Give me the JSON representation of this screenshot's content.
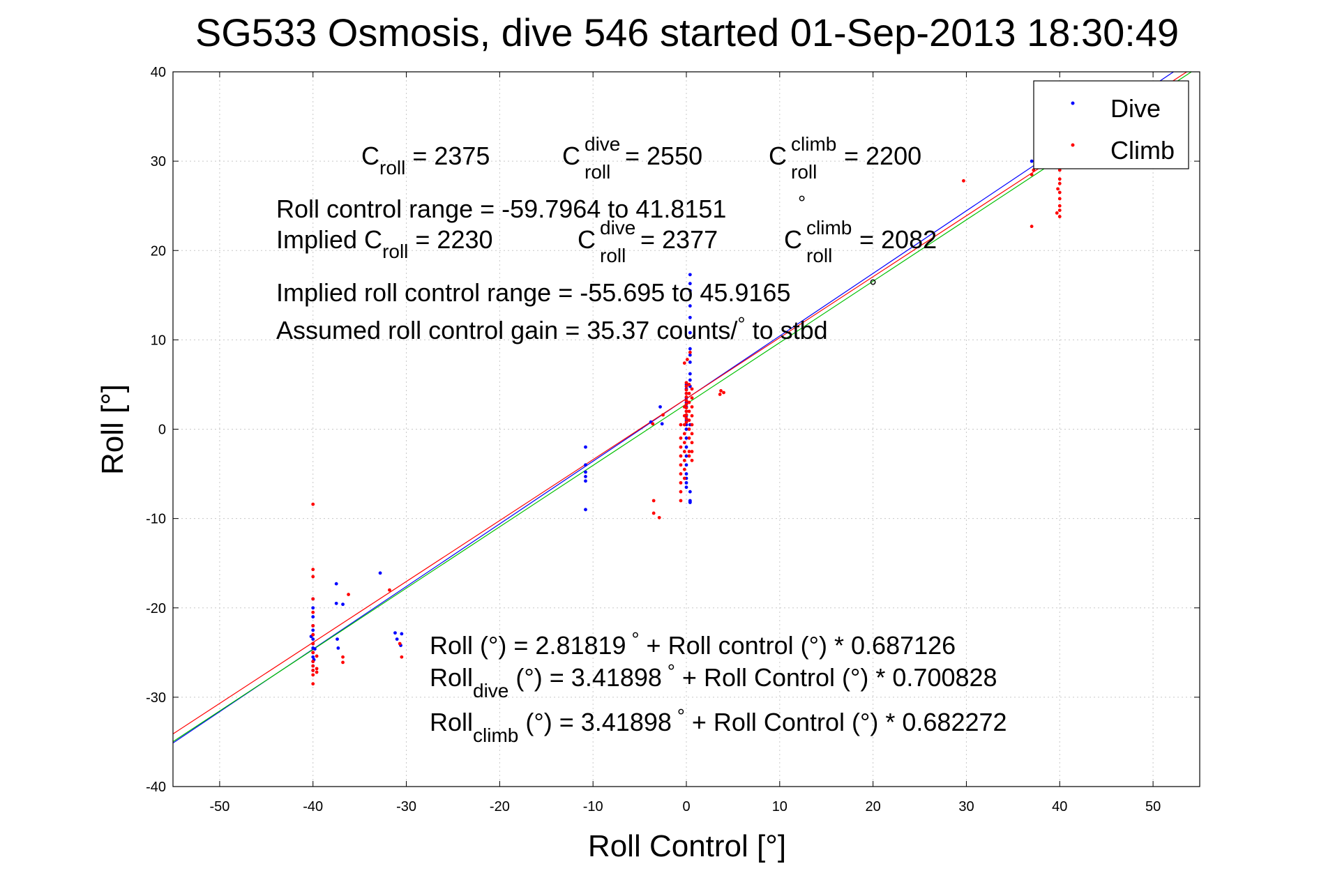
{
  "chart_data": {
    "type": "scatter",
    "title": "SG533 Osmosis, dive 546 started 01-Sep-2013 18:30:49",
    "xlabel": "Roll Control [°]",
    "ylabel": "Roll [°]",
    "xlim": [
      -55,
      55
    ],
    "ylim": [
      -40,
      40
    ],
    "xticks": [
      -50,
      -40,
      -30,
      -20,
      -10,
      0,
      10,
      20,
      30,
      40,
      50
    ],
    "yticks": [
      -40,
      -30,
      -20,
      -10,
      0,
      10,
      20,
      30,
      40
    ],
    "grid": true,
    "legend": {
      "placement": "top-right",
      "entries": [
        {
          "label": "Dive",
          "color": "#0000ff"
        },
        {
          "label": "Climb",
          "color": "#ff0000"
        }
      ]
    },
    "series": [
      {
        "name": "Dive",
        "color": "#0000ff",
        "points": [
          [
            -40,
            -19
          ],
          [
            -40,
            -20
          ],
          [
            -40,
            -21
          ],
          [
            -40,
            -22
          ],
          [
            -40,
            -22.5
          ],
          [
            -40,
            -23
          ],
          [
            -40,
            -23.5
          ],
          [
            -40,
            -24
          ],
          [
            -40,
            -24.5
          ],
          [
            -40,
            -25
          ],
          [
            -40,
            -25.5
          ],
          [
            -40,
            -26
          ],
          [
            -40,
            -26.5
          ],
          [
            -40,
            -27
          ],
          [
            -40.2,
            -23.2
          ],
          [
            -39.8,
            -24.6
          ],
          [
            -39.9,
            -25.8
          ],
          [
            -37.5,
            -17.3
          ],
          [
            -37.5,
            -19.5
          ],
          [
            -37.4,
            -23.5
          ],
          [
            -37.3,
            -24.5
          ],
          [
            -36.8,
            -19.6
          ],
          [
            -32.8,
            -16.1
          ],
          [
            -31.2,
            -22.8
          ],
          [
            -31.0,
            -23.5
          ],
          [
            -30.5,
            -22.9
          ],
          [
            -30.6,
            -24.2
          ],
          [
            -10.8,
            -2.0
          ],
          [
            -10.8,
            -4.0
          ],
          [
            -10.8,
            -4.8
          ],
          [
            -10.8,
            -5.3
          ],
          [
            -10.8,
            -5.8
          ],
          [
            -10.8,
            -9.0
          ],
          [
            -3.8,
            0.8
          ],
          [
            -2.8,
            2.5
          ],
          [
            -2.6,
            0.6
          ],
          [
            0,
            5.0
          ],
          [
            0,
            4.5
          ],
          [
            0,
            4.0
          ],
          [
            0,
            3.5
          ],
          [
            0,
            3.0
          ],
          [
            0,
            2.5
          ],
          [
            0,
            2.0
          ],
          [
            0,
            1.5
          ],
          [
            0,
            1.0
          ],
          [
            0,
            0.5
          ],
          [
            0,
            0
          ],
          [
            0,
            -1.0
          ],
          [
            0,
            -2.0
          ],
          [
            0,
            -3.0
          ],
          [
            0,
            -4.0
          ],
          [
            0,
            -5.0
          ],
          [
            0,
            -5.5
          ],
          [
            0,
            -6.0
          ],
          [
            0,
            -6.5
          ],
          [
            0.4,
            17.3
          ],
          [
            0.4,
            16.3
          ],
          [
            0.4,
            15.5
          ],
          [
            0.4,
            13.8
          ],
          [
            0.4,
            12.5
          ],
          [
            0.4,
            10.8
          ],
          [
            0.4,
            9.0
          ],
          [
            0.4,
            8.3
          ],
          [
            0.4,
            7.5
          ],
          [
            0.4,
            6.2
          ],
          [
            0.4,
            5.5
          ],
          [
            0.4,
            4.8
          ],
          [
            0.4,
            0.5
          ],
          [
            0.4,
            -7.0
          ],
          [
            0.4,
            -8.0
          ],
          [
            0.4,
            -8.1
          ],
          [
            0.4,
            -8.2
          ],
          [
            37.0,
            30.0
          ],
          [
            40.0,
            31.0
          ],
          [
            40.0,
            30.5
          ],
          [
            39.8,
            29.5
          ]
        ]
      },
      {
        "name": "Climb",
        "color": "#ff0000",
        "points": [
          [
            -40,
            -8.4
          ],
          [
            -40,
            -15.7
          ],
          [
            -40,
            -16.5
          ],
          [
            -40,
            -19.0
          ],
          [
            -40,
            -20.5
          ],
          [
            -40,
            -22.0
          ],
          [
            -40,
            -23.0
          ],
          [
            -40,
            -24.0
          ],
          [
            -40,
            -25.0
          ],
          [
            -40,
            -26.0
          ],
          [
            -40,
            -26.5
          ],
          [
            -40,
            -27.0
          ],
          [
            -40,
            -27.5
          ],
          [
            -40,
            -28.5
          ],
          [
            -39.6,
            -25.4
          ],
          [
            -39.6,
            -26.8
          ],
          [
            -39.6,
            -27.2
          ],
          [
            -36.8,
            -25.5
          ],
          [
            -36.8,
            -26.1
          ],
          [
            -36.2,
            -18.5
          ],
          [
            -31.8,
            -18.0
          ],
          [
            -30.7,
            -24.0
          ],
          [
            -30.5,
            -25.5
          ],
          [
            -3.5,
            -8.0
          ],
          [
            -3.5,
            -9.4
          ],
          [
            -2.9,
            -9.9
          ],
          [
            -3.6,
            0.6
          ],
          [
            -2.5,
            1.6
          ],
          [
            -0.6,
            0.5
          ],
          [
            -0.6,
            -1.0
          ],
          [
            -0.6,
            -2.0
          ],
          [
            -0.6,
            -3.0
          ],
          [
            -0.6,
            -4.0
          ],
          [
            -0.6,
            -5.0
          ],
          [
            -0.6,
            -6.0
          ],
          [
            -0.6,
            -7.0
          ],
          [
            -0.6,
            -8.0
          ],
          [
            -0.2,
            2.5
          ],
          [
            -0.2,
            1.5
          ],
          [
            -0.2,
            0.5
          ],
          [
            -0.2,
            -0.5
          ],
          [
            -0.2,
            -1.5
          ],
          [
            -0.2,
            -2.5
          ],
          [
            -0.2,
            -3.5
          ],
          [
            -0.2,
            -4.5
          ],
          [
            -0.2,
            -5.5
          ],
          [
            0,
            5.2
          ],
          [
            0,
            4.8
          ],
          [
            0,
            4.4
          ],
          [
            0,
            4.0
          ],
          [
            0,
            3.6
          ],
          [
            0,
            3.2
          ],
          [
            0,
            2.8
          ],
          [
            0,
            2.4
          ],
          [
            0,
            2.0
          ],
          [
            0,
            1.6
          ],
          [
            0,
            1.2
          ],
          [
            0,
            0.8
          ],
          [
            0.3,
            5.0
          ],
          [
            0.3,
            4.0
          ],
          [
            0.3,
            3.0
          ],
          [
            0.3,
            2.0
          ],
          [
            0.3,
            1.0
          ],
          [
            0.3,
            0
          ],
          [
            0.3,
            -1.0
          ],
          [
            0.3,
            -2.5
          ],
          [
            0.3,
            -3.0
          ],
          [
            0.6,
            4.5
          ],
          [
            0.6,
            3.5
          ],
          [
            0.6,
            2.5
          ],
          [
            0.6,
            1.5
          ],
          [
            0.6,
            0.5
          ],
          [
            0.6,
            -0.5
          ],
          [
            0.6,
            -1.5
          ],
          [
            0.6,
            -2.5
          ],
          [
            0.6,
            -3.5
          ],
          [
            -0.2,
            7.4
          ],
          [
            0.1,
            7.8
          ],
          [
            0.4,
            8.6
          ],
          [
            3.6,
            3.9
          ],
          [
            3.7,
            4.3
          ],
          [
            4.0,
            4.1
          ],
          [
            29.7,
            27.8
          ],
          [
            37.0,
            22.7
          ],
          [
            37.0,
            28.5
          ],
          [
            37.2,
            29.0
          ],
          [
            40.0,
            23.8
          ],
          [
            40.0,
            24.5
          ],
          [
            40.0,
            25.0
          ],
          [
            40.0,
            25.8
          ],
          [
            40.0,
            26.5
          ],
          [
            40.0,
            27.5
          ],
          [
            40.0,
            28.0
          ],
          [
            40.0,
            29.0
          ],
          [
            40.0,
            30.0
          ],
          [
            39.7,
            24.2
          ],
          [
            39.8,
            26.9
          ]
        ]
      }
    ],
    "fit_lines": [
      {
        "color": "#0000ff",
        "intercept": 3.41898,
        "slope": 0.700828
      },
      {
        "color": "#00c000",
        "intercept": 2.81819,
        "slope": 0.687126
      },
      {
        "color": "#ff0000",
        "intercept": 3.41898,
        "slope": 0.682272
      }
    ],
    "annotations": {
      "c_roll_line": {
        "c1": "C",
        "c1_sub": "roll",
        "c1_val": " = 2375",
        "c2": "C",
        "c2_sup": "dive",
        "c2_sub": "roll",
        "c2_val": " = 2550",
        "c3": "C",
        "c3_sup": "climb",
        "c3_sub": "roll",
        "c3_val": " = 2200"
      },
      "roll_control_range": "Roll control range = -59.7964 to 41.8151",
      "implied_line": {
        "prefix": "Implied C",
        "c1_sub": "roll",
        "c1_val": " = 2230",
        "c2": "C",
        "c2_sup": "dive",
        "c2_sub": "roll",
        "c2_val": " = 2377",
        "c3": "C",
        "c3_sup": "climb",
        "c3_sub": "roll",
        "c3_val": " = 2082"
      },
      "implied_range": "Implied roll control range = -55.695 to 45.9165",
      "gain_pre": "Assumed roll control gain = 35.37 counts/",
      "gain_post": " to stbd",
      "degree_symbol": "°",
      "fit_all": "Roll (°) = 2.81819",
      "fit_all_rest": " + Roll control (°) * 0.687126",
      "fit_dive_pre": "Roll",
      "fit_dive_sub": "dive",
      "fit_dive_rest": " (°) = 3.41898",
      "fit_dive_rest2": " + Roll Control (°) * 0.700828",
      "fit_climb_pre": "Roll",
      "fit_climb_sub": "climb",
      "fit_climb_rest": " (°) = 3.41898",
      "fit_climb_rest2": " + Roll Control (°) * 0.682272"
    }
  }
}
